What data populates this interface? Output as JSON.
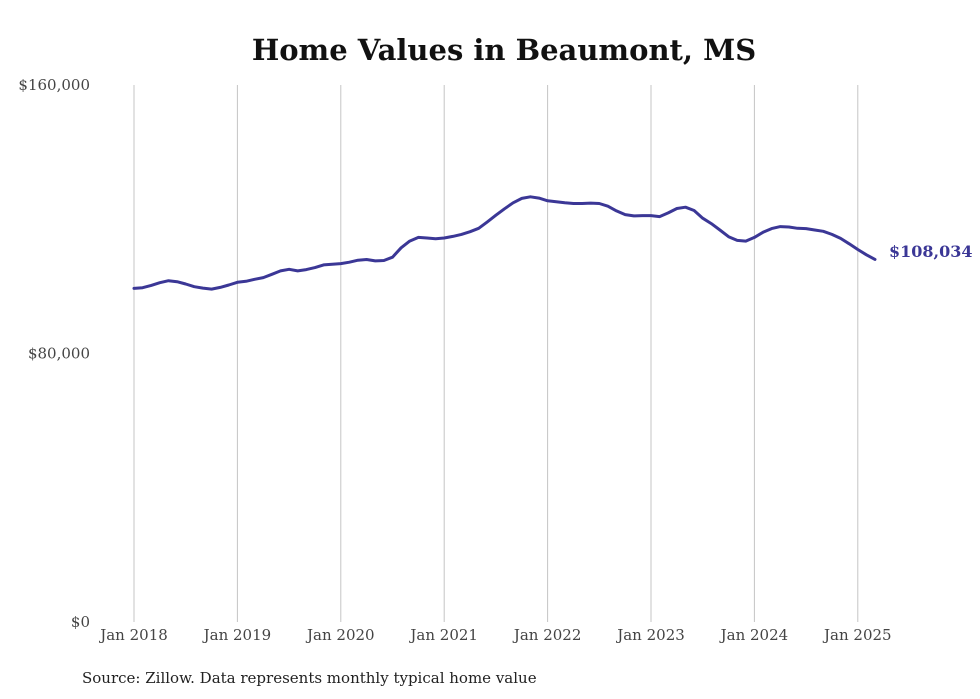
{
  "chart_data": {
    "type": "line",
    "title": "Home Values in Beaumont, MS",
    "xlabel": "",
    "ylabel": "",
    "ylim": [
      0,
      160000
    ],
    "y_ticks": [
      {
        "value": 0,
        "label": "$0"
      },
      {
        "value": 80000,
        "label": "$80,000"
      },
      {
        "value": 160000,
        "label": "$160,000"
      }
    ],
    "x_ticks": [
      {
        "date": "2018-01",
        "label": "Jan 2018"
      },
      {
        "date": "2019-01",
        "label": "Jan 2019"
      },
      {
        "date": "2020-01",
        "label": "Jan 2020"
      },
      {
        "date": "2021-01",
        "label": "Jan 2021"
      },
      {
        "date": "2022-01",
        "label": "Jan 2022"
      },
      {
        "date": "2023-01",
        "label": "Jan 2023"
      },
      {
        "date": "2024-01",
        "label": "Jan 2024"
      },
      {
        "date": "2025-01",
        "label": "Jan 2025"
      }
    ],
    "grid": "vertical",
    "line_color": "#3b3796",
    "end_label": "$108,034",
    "source": "Source: Zillow. Data represents monthly typical home value",
    "series": [
      {
        "name": "",
        "x": [
          "2018-01",
          "2018-02",
          "2018-03",
          "2018-04",
          "2018-05",
          "2018-06",
          "2018-07",
          "2018-08",
          "2018-09",
          "2018-10",
          "2018-11",
          "2018-12",
          "2019-01",
          "2019-02",
          "2019-03",
          "2019-04",
          "2019-05",
          "2019-06",
          "2019-07",
          "2019-08",
          "2019-09",
          "2019-10",
          "2019-11",
          "2019-12",
          "2020-01",
          "2020-02",
          "2020-03",
          "2020-04",
          "2020-05",
          "2020-06",
          "2020-07",
          "2020-08",
          "2020-09",
          "2020-10",
          "2020-11",
          "2020-12",
          "2021-01",
          "2021-02",
          "2021-03",
          "2021-04",
          "2021-05",
          "2021-06",
          "2021-07",
          "2021-08",
          "2021-09",
          "2021-10",
          "2021-11",
          "2021-12",
          "2022-01",
          "2022-02",
          "2022-03",
          "2022-04",
          "2022-05",
          "2022-06",
          "2022-07",
          "2022-08",
          "2022-09",
          "2022-10",
          "2022-11",
          "2022-12",
          "2023-01",
          "2023-02",
          "2023-03",
          "2023-04",
          "2023-05",
          "2023-06",
          "2023-07",
          "2023-08",
          "2023-09",
          "2023-10",
          "2023-11",
          "2023-12",
          "2024-01",
          "2024-02",
          "2024-03",
          "2024-04",
          "2024-05",
          "2024-06",
          "2024-07",
          "2024-08",
          "2024-09",
          "2024-10",
          "2024-11",
          "2024-12",
          "2025-01",
          "2025-02",
          "2025-03"
        ],
        "values": [
          99400,
          99600,
          100300,
          101100,
          101700,
          101400,
          100700,
          99900,
          99500,
          99200,
          99700,
          100400,
          101200,
          101500,
          102100,
          102600,
          103600,
          104600,
          105100,
          104600,
          105000,
          105600,
          106400,
          106600,
          106800,
          107200,
          107800,
          108000,
          107600,
          107700,
          108700,
          111500,
          113500,
          114600,
          114400,
          114200,
          114400,
          114900,
          115500,
          116300,
          117300,
          119200,
          121200,
          123100,
          124900,
          126200,
          126700,
          126300,
          125500,
          125200,
          124900,
          124700,
          124700,
          124800,
          124700,
          123900,
          122500,
          121400,
          121000,
          121100,
          121100,
          120800,
          121900,
          123200,
          123600,
          122600,
          120300,
          118700,
          116800,
          114800,
          113700,
          113500,
          114600,
          116100,
          117200,
          117800,
          117700,
          117300,
          117200,
          116800,
          116400,
          115500,
          114300,
          112700,
          111000,
          109400,
          108034
        ]
      }
    ]
  }
}
